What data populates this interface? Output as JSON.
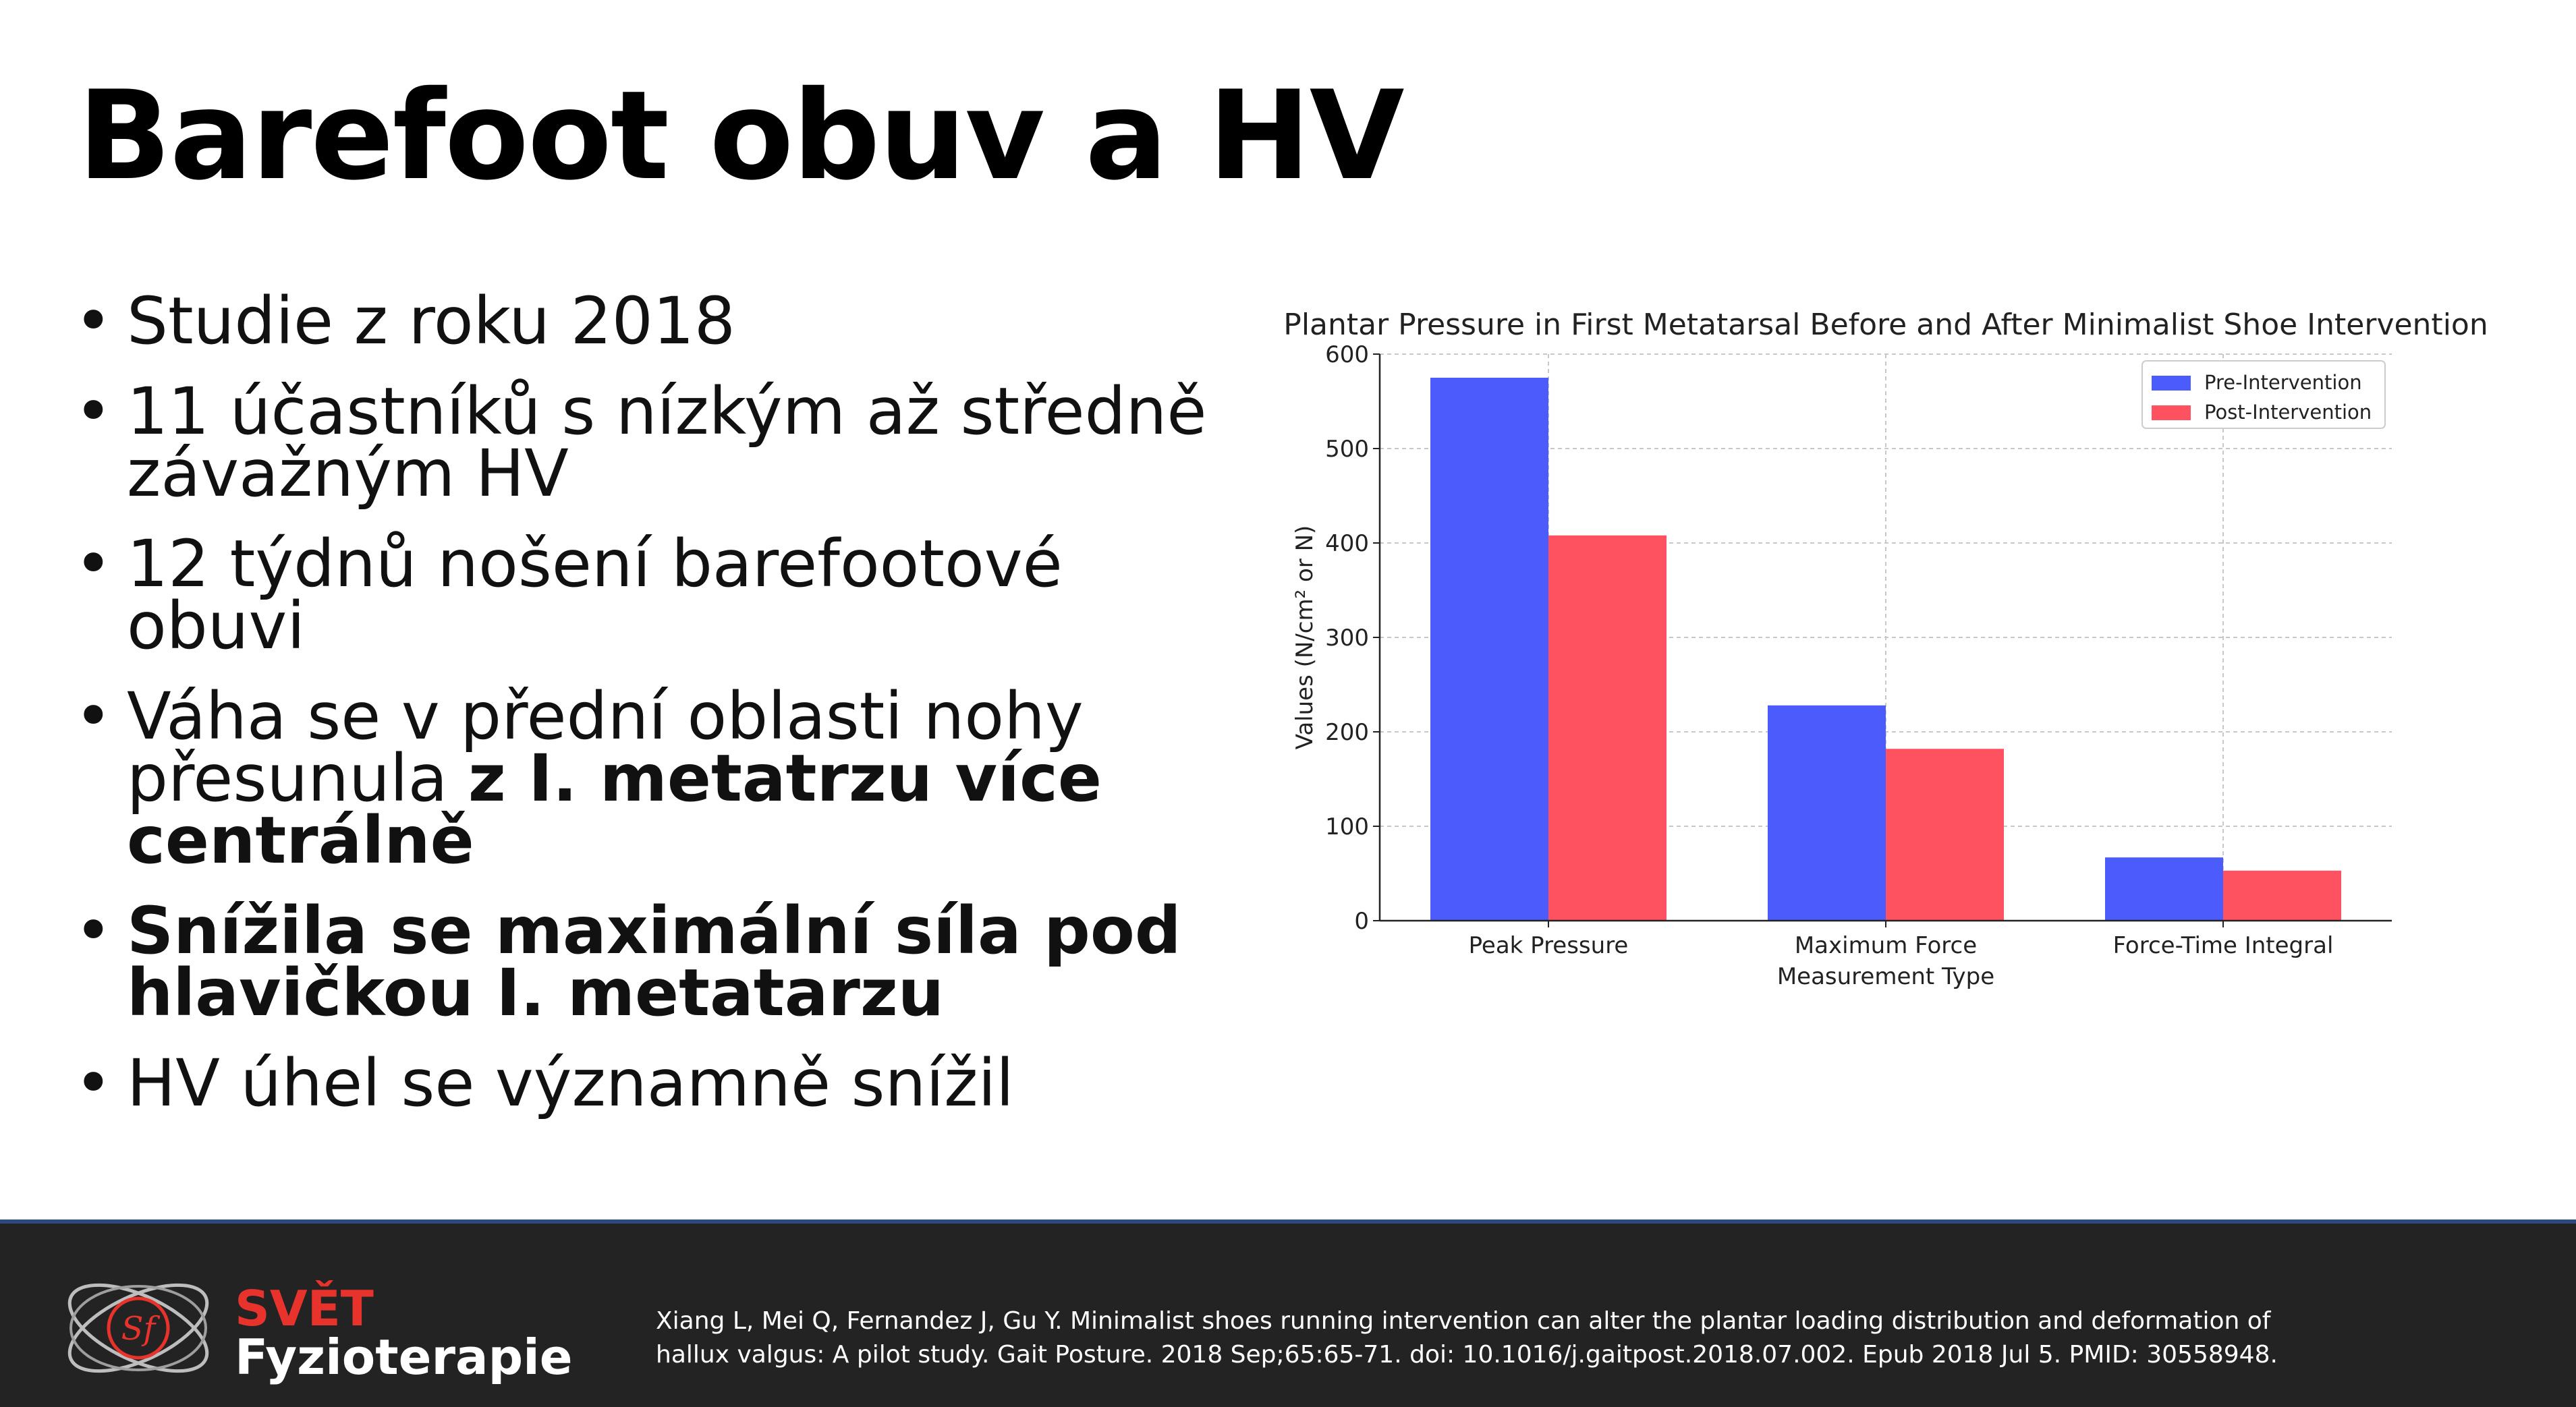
{
  "slide": {
    "title": "Barefoot obuv a HV",
    "bullets": [
      {
        "parts": [
          {
            "text": "Studie z roku 2018",
            "bold": false
          }
        ]
      },
      {
        "parts": [
          {
            "text": "11 účastníků s nízkým až středně závažným HV",
            "bold": false
          }
        ]
      },
      {
        "parts": [
          {
            "text": "12 týdnů nošení barefootové obuvi",
            "bold": false
          }
        ]
      },
      {
        "parts": [
          {
            "text": "Váha se v přední oblasti nohy přesunula ",
            "bold": false
          },
          {
            "text": "z I. metatrzu více centrálně",
            "bold": true
          }
        ]
      },
      {
        "parts": [
          {
            "text": "Snížila se maximální síla pod hlavičkou I. metatarzu",
            "bold": true
          }
        ]
      },
      {
        "parts": [
          {
            "text": "HV úhel se významně snížil",
            "bold": false
          }
        ]
      }
    ]
  },
  "chart_data": {
    "type": "bar",
    "title": "Plantar Pressure in First Metatarsal Before and After Minimalist Shoe Intervention",
    "xlabel": "Measurement Type",
    "ylabel": "Values (N/cm² or N)",
    "categories": [
      "Peak Pressure",
      "Maximum Force",
      "Force-Time Integral"
    ],
    "series": [
      {
        "name": "Pre-Intervention",
        "values": [
          575,
          228,
          67
        ],
        "color": "#4c5bfb"
      },
      {
        "name": "Post-Intervention",
        "values": [
          408,
          182,
          53
        ],
        "color": "#ff5260"
      }
    ],
    "ylim": [
      0,
      600
    ],
    "yticks": [
      0,
      100,
      200,
      300,
      400,
      500,
      600
    ],
    "grid": true,
    "legend_position": "top-right"
  },
  "footer": {
    "brand_line1": "SVĚT",
    "brand_line2": "Fyzioterapie",
    "logo_text": "Sf",
    "citation": "Xiang L, Mei Q, Fernandez J, Gu Y. Minimalist shoes running intervention can alter the plantar loading distribution and deformation of hallux valgus: A pilot study. Gait Posture. 2018 Sep;65:65-71. doi: 10.1016/j.gaitpost.2018.07.002. Epub 2018 Jul 5. PMID: 30558948.",
    "brand_color": "#e8332d"
  }
}
